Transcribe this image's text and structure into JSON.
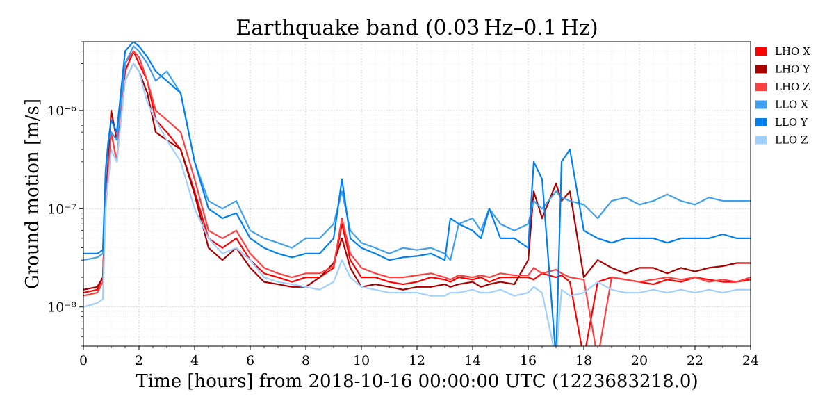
{
  "chart_data": {
    "type": "line",
    "title": "Earthquake band (0.03 Hz–0.1 Hz)",
    "xlabel": "Time [hours] from 2018-10-16 00:00:00 UTC (1223683218.0)",
    "ylabel": "Ground motion [m/s]",
    "xlim": [
      0,
      24
    ],
    "ylim": [
      4e-09,
      5e-06
    ],
    "yscale": "log",
    "grid": true,
    "legend_position": "right",
    "x_ticks": [
      "0",
      "2",
      "4",
      "6",
      "8",
      "10",
      "12",
      "14",
      "16",
      "18",
      "20",
      "22",
      "24"
    ],
    "y_ticks": [
      {
        "value": 1e-08,
        "label": "10⁻⁸"
      },
      {
        "value": 1e-07,
        "label": "10⁻⁷"
      },
      {
        "value": 1e-06,
        "label": "10⁻⁶"
      }
    ],
    "x": [
      0,
      0.5,
      0.7,
      0.8,
      0.9,
      1.0,
      1.2,
      1.5,
      1.8,
      2.0,
      2.3,
      2.6,
      3.0,
      3.5,
      4.0,
      4.5,
      5.0,
      5.5,
      6.0,
      6.5,
      7.0,
      7.5,
      8.0,
      8.5,
      9.0,
      9.3,
      9.6,
      10.0,
      10.5,
      11.0,
      11.5,
      12.0,
      12.5,
      13.0,
      13.2,
      13.5,
      14.0,
      14.3,
      14.6,
      15.0,
      15.5,
      16.0,
      16.2,
      16.5,
      17.0,
      17.2,
      17.5,
      18.0,
      18.5,
      19.0,
      19.5,
      20.0,
      20.5,
      21.0,
      21.5,
      22.0,
      22.5,
      23.0,
      23.5,
      24.0
    ],
    "series": [
      {
        "name": "LHO X",
        "color": "#ff0000",
        "values": [
          1.4e-08,
          1.5e-08,
          2e-08,
          1.5e-07,
          4e-07,
          6e-07,
          3e-07,
          2.5e-06,
          4e-06,
          3e-06,
          2e-06,
          8e-07,
          6e-07,
          4e-07,
          1.5e-07,
          5e-08,
          4e-08,
          5e-08,
          3e-08,
          2.2e-08,
          2e-08,
          1.8e-08,
          2e-08,
          2e-08,
          2.5e-08,
          7e-08,
          3e-08,
          2e-08,
          2e-08,
          1.8e-08,
          1.7e-08,
          1.8e-08,
          2e-08,
          1.9e-08,
          1.8e-08,
          2e-08,
          1.9e-08,
          2e-08,
          1.8e-08,
          2e-08,
          2e-08,
          2e-08,
          1.9e-08,
          2.2e-08,
          2e-08,
          2.1e-08,
          1.8e-08,
          3e-09,
          1.8e-08,
          2e-08,
          1.9e-08,
          1.8e-08,
          1.7e-08,
          1.9e-08,
          1.8e-08,
          2e-08,
          1.9e-08,
          1.8e-08,
          1.8e-08,
          1.9e-08
        ]
      },
      {
        "name": "LHO Y",
        "color": "#aa0000",
        "values": [
          1.5e-08,
          1.6e-08,
          2e-08,
          1.2e-07,
          3e-07,
          1e-06,
          5e-07,
          2e-06,
          3e-06,
          2.5e-06,
          1.5e-06,
          6e-07,
          5e-07,
          4e-07,
          1.4e-07,
          4e-08,
          3e-08,
          4e-08,
          2.5e-08,
          1.8e-08,
          1.7e-08,
          1.6e-08,
          1.6e-08,
          2e-08,
          2.8e-08,
          5e-08,
          2.5e-08,
          1.6e-08,
          1.7e-08,
          1.6e-08,
          1.5e-08,
          1.6e-08,
          1.6e-08,
          1.7e-08,
          1.6e-08,
          1.7e-08,
          1.8e-08,
          1.6e-08,
          1.7e-08,
          1.8e-08,
          1.7e-08,
          3e-08,
          1.5e-07,
          8e-08,
          1.8e-07,
          1.2e-07,
          1.5e-07,
          2e-08,
          3e-08,
          2.5e-08,
          2.2e-08,
          2.5e-08,
          2.5e-08,
          2.2e-08,
          2.5e-08,
          2.3e-08,
          2.5e-08,
          2.6e-08,
          2.8e-08,
          2.8e-08
        ]
      },
      {
        "name": "LHO Z",
        "color": "#ff4040",
        "values": [
          1.3e-08,
          1.4e-08,
          1.8e-08,
          1.2e-07,
          2.5e-07,
          6e-07,
          3e-07,
          3e-06,
          4e-06,
          3.5e-06,
          2e-06,
          1e-06,
          8e-07,
          6e-07,
          2e-07,
          6e-08,
          5e-08,
          6e-08,
          3.5e-08,
          2.5e-08,
          2.2e-08,
          2e-08,
          2.2e-08,
          2.2e-08,
          2.6e-08,
          8e-08,
          3.5e-08,
          2.5e-08,
          2.2e-08,
          2e-08,
          2e-08,
          2.1e-08,
          2.2e-08,
          2e-08,
          1.9e-08,
          2.1e-08,
          2e-08,
          2.1e-08,
          2e-08,
          2.2e-08,
          2.1e-08,
          2.1e-08,
          2.5e-08,
          2.2e-08,
          2.4e-08,
          2.2e-08,
          2e-08,
          1.9e-08,
          3e-09,
          2e-08,
          1.9e-08,
          1.8e-08,
          1.9e-08,
          2e-08,
          1.9e-08,
          2e-08,
          1.8e-08,
          1.9e-08,
          1.8e-08,
          2e-08
        ]
      },
      {
        "name": "LLO X",
        "color": "#40a0f0",
        "values": [
          3e-08,
          3.2e-08,
          3.5e-08,
          2e-07,
          5e-07,
          6e-07,
          5e-07,
          3e-06,
          4.5e-06,
          4e-06,
          3e-06,
          2e-06,
          2.5e-06,
          1.5e-06,
          3e-07,
          1.2e-07,
          1e-07,
          1.2e-07,
          6e-08,
          5e-08,
          4.5e-08,
          4e-08,
          5e-08,
          5e-08,
          7e-08,
          1.5e-07,
          6e-08,
          4.5e-08,
          4e-08,
          3.5e-08,
          4e-08,
          3.8e-08,
          4e-08,
          3.5e-08,
          3e-08,
          7e-08,
          8e-08,
          6e-08,
          1e-07,
          7e-08,
          6e-08,
          7e-08,
          1.2e-07,
          1e-07,
          1.5e-07,
          1.3e-07,
          1.2e-07,
          1.1e-07,
          8e-08,
          1.2e-07,
          1.3e-07,
          1.1e-07,
          1.2e-07,
          1.4e-07,
          1.2e-07,
          1.1e-07,
          1.3e-07,
          1.2e-07,
          1.2e-07,
          1.2e-07
        ]
      },
      {
        "name": "LLO Y",
        "color": "#0080f0",
        "values": [
          3.5e-08,
          3.5e-08,
          3.8e-08,
          2.5e-07,
          5e-07,
          8e-07,
          6e-07,
          4e-06,
          5e-06,
          4.5e-06,
          3.5e-06,
          2.5e-06,
          2e-06,
          1.5e-06,
          3e-07,
          1e-07,
          8e-08,
          9e-08,
          5e-08,
          4e-08,
          3.5e-08,
          3.2e-08,
          3.5e-08,
          3.5e-08,
          5e-08,
          2e-07,
          5e-08,
          4e-08,
          3.5e-08,
          3e-08,
          3.2e-08,
          3.3e-08,
          3.5e-08,
          3e-08,
          8e-08,
          7e-08,
          6e-08,
          5e-08,
          1e-07,
          5e-08,
          5e-08,
          4e-08,
          3e-07,
          2e-07,
          3e-09,
          3e-07,
          4e-07,
          6e-08,
          5e-08,
          4.5e-08,
          5e-08,
          5e-08,
          5e-08,
          4.5e-08,
          5e-08,
          5e-08,
          5e-08,
          5.5e-08,
          5e-08,
          5e-08
        ]
      },
      {
        "name": "LLO Z",
        "color": "#a0d0ff",
        "values": [
          1e-08,
          1.1e-08,
          1.2e-08,
          1e-07,
          2e-07,
          4e-07,
          3e-07,
          2e-06,
          3e-06,
          2.5e-06,
          1.2e-06,
          8e-07,
          5e-07,
          3e-07,
          1e-07,
          5e-08,
          3.5e-08,
          4e-08,
          3e-08,
          2e-08,
          1.8e-08,
          1.7e-08,
          1.6e-08,
          1.5e-08,
          1.8e-08,
          3e-08,
          2e-08,
          1.6e-08,
          1.5e-08,
          1.4e-08,
          1.4e-08,
          1.4e-08,
          1.3e-08,
          1.3e-08,
          1.4e-08,
          1.4e-08,
          1.5e-08,
          1.4e-08,
          1.4e-08,
          1.5e-08,
          1.3e-08,
          1.4e-08,
          1.6e-08,
          1.4e-08,
          3e-09,
          1.5e-08,
          1.3e-08,
          1.4e-08,
          1.8e-08,
          1.5e-08,
          1.4e-08,
          1.4e-08,
          1.5e-08,
          1.4e-08,
          1.5e-08,
          1.4e-08,
          1.5e-08,
          1.4e-08,
          1.5e-08,
          1.5e-08
        ]
      }
    ]
  }
}
